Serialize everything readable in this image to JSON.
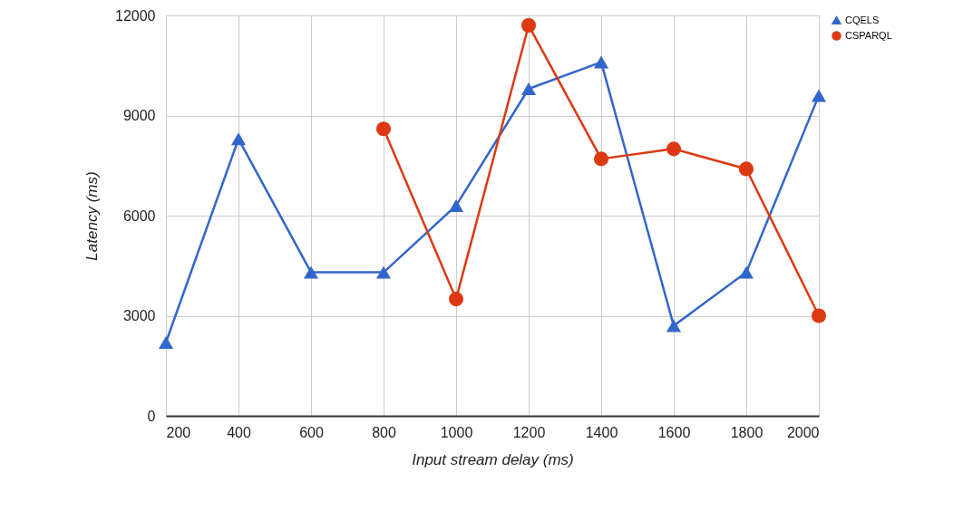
{
  "chart_data": {
    "type": "line",
    "xlabel": "Input stream delay (ms)",
    "ylabel": "Latency (ms)",
    "x": [
      200,
      400,
      600,
      800,
      1000,
      1200,
      1400,
      1600,
      1800,
      2000
    ],
    "series": [
      {
        "name": "CQELS",
        "color": "#3366cc",
        "marker": "triangle",
        "values": [
          2200,
          8300,
          4300,
          4300,
          6300,
          9800,
          10600,
          2700,
          4300,
          9600
        ]
      },
      {
        "name": "CSPARQL",
        "color": "#dc3912",
        "marker": "circle",
        "values": [
          null,
          null,
          null,
          8600,
          3500,
          11700,
          7700,
          8000,
          7400,
          3000
        ]
      }
    ],
    "xlim": [
      200,
      2000
    ],
    "xticks": [
      200,
      400,
      600,
      800,
      1000,
      1200,
      1400,
      1600,
      1800,
      2000
    ],
    "ylim": [
      0,
      12000
    ],
    "yticks": [
      0,
      3000,
      6000,
      9000,
      12000
    ],
    "grid": true,
    "legend": "top right"
  }
}
